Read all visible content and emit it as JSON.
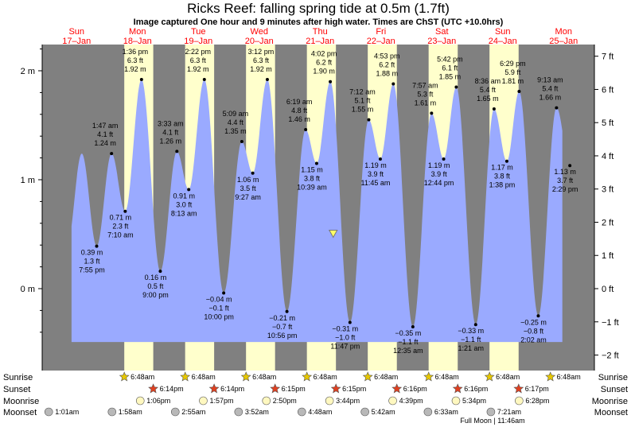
{
  "chart_data": {
    "type": "area",
    "title": "Ricks Reef: falling  spring tide at 0.5m (1.7ft)",
    "subtitle": "Image captured One hour and 9 minutes after high water. Times are ChST (UTC +10.0hrs)",
    "days": [
      {
        "weekday": "Sun",
        "date": "17–Jan"
      },
      {
        "weekday": "Mon",
        "date": "18–Jan"
      },
      {
        "weekday": "Tue",
        "date": "19–Jan"
      },
      {
        "weekday": "Wed",
        "date": "20–Jan"
      },
      {
        "weekday": "Thu",
        "date": "21–Jan"
      },
      {
        "weekday": "Fri",
        "date": "22–Jan"
      },
      {
        "weekday": "Sat",
        "date": "23–Jan"
      },
      {
        "weekday": "Sun",
        "date": "24–Jan"
      },
      {
        "weekday": "Mon",
        "date": "25–Jan"
      }
    ],
    "y_left_ticks": [
      {
        "v": 0,
        "label": "0 m"
      },
      {
        "v": 1,
        "label": "1 m"
      },
      {
        "v": 2,
        "label": "2 m"
      }
    ],
    "y_right_ticks": [
      {
        "ft": -2,
        "label": "−2 ft"
      },
      {
        "ft": -1,
        "label": "−1 ft"
      },
      {
        "ft": 0,
        "label": "0 ft"
      },
      {
        "ft": 1,
        "label": "1 ft"
      },
      {
        "ft": 2,
        "label": "2 ft"
      },
      {
        "ft": 3,
        "label": "3 ft"
      },
      {
        "ft": 4,
        "label": "4 ft"
      },
      {
        "ft": 5,
        "label": "5 ft"
      },
      {
        "ft": 6,
        "label": "6 ft"
      },
      {
        "ft": 7,
        "label": "7 ft"
      }
    ],
    "ylim_m": [
      -0.6,
      2.25
    ],
    "xlim_hours": [
      0,
      216
    ],
    "daylight": [
      {
        "sunrise_h": 30.8,
        "sunset_h": 42.23
      },
      {
        "sunrise_h": 54.8,
        "sunset_h": 66.23
      },
      {
        "sunrise_h": 78.8,
        "sunset_h": 90.25
      },
      {
        "sunrise_h": 102.8,
        "sunset_h": 114.25
      },
      {
        "sunrise_h": 126.8,
        "sunset_h": 138.27
      },
      {
        "sunrise_h": 150.8,
        "sunset_h": 162.27
      },
      {
        "sunrise_h": 174.8,
        "sunset_h": 186.28
      }
    ],
    "tide_extremes": [
      {
        "t": 19.92,
        "m": 0.39,
        "lines": [
          "0.39 m",
          "1.3 ft",
          "7:55 pm"
        ],
        "pos": "below"
      },
      {
        "t": 25.78,
        "m": 1.24,
        "lines": [
          "1:47 am",
          "4.1 ft",
          "1.24 m"
        ],
        "pos": "above"
      },
      {
        "t": 31.17,
        "m": 0.71,
        "lines": [
          "0.71 m",
          "2.3 ft",
          "7:10 am"
        ],
        "pos": "below"
      },
      {
        "t": 37.6,
        "m": 1.92,
        "lines": [
          "1:36 pm",
          "6.3 ft",
          "1.92 m"
        ],
        "pos": "above"
      },
      {
        "t": 45.0,
        "m": 0.16,
        "lines": [
          "0.16 m",
          "0.5 ft",
          "9:00 pm"
        ],
        "pos": "below"
      },
      {
        "t": 51.55,
        "m": 1.26,
        "lines": [
          "3:33 am",
          "4.1 ft",
          "1.26 m"
        ],
        "pos": "above"
      },
      {
        "t": 56.22,
        "m": 0.91,
        "lines": [
          "0.91 m",
          "3.0 ft",
          "8:13 am"
        ],
        "pos": "below"
      },
      {
        "t": 62.37,
        "m": 1.92,
        "lines": [
          "2:22 pm",
          "6.3 ft",
          "1.92 m"
        ],
        "pos": "above"
      },
      {
        "t": 70.0,
        "m": -0.04,
        "lines": [
          "−0.04 m",
          "−0.1 ft",
          "10:00 pm"
        ],
        "pos": "below"
      },
      {
        "t": 77.15,
        "m": 1.35,
        "lines": [
          "5:09 am",
          "4.4 ft",
          "1.35 m"
        ],
        "pos": "above"
      },
      {
        "t": 81.45,
        "m": 1.06,
        "lines": [
          "1.06 m",
          "3.5 ft",
          "9:27 am"
        ],
        "pos": "below"
      },
      {
        "t": 87.2,
        "m": 1.92,
        "lines": [
          "3:12 pm",
          "6.3 ft",
          "1.92 m"
        ],
        "pos": "above"
      },
      {
        "t": 94.93,
        "m": -0.21,
        "lines": [
          "−0.21 m",
          "−0.7 ft",
          "10:56 pm"
        ],
        "pos": "below"
      },
      {
        "t": 102.32,
        "m": 1.46,
        "lines": [
          "6:19 am",
          "4.8 ft",
          "1.46 m"
        ],
        "pos": "above"
      },
      {
        "t": 106.65,
        "m": 1.15,
        "lines": [
          "1.15 m",
          "3.8 ft",
          "10:39 am"
        ],
        "pos": "below"
      },
      {
        "t": 112.03,
        "m": 1.9,
        "lines": [
          "4:02 pm",
          "6.2 ft",
          "1.90 m"
        ],
        "pos": "above"
      },
      {
        "t": 119.78,
        "m": -0.31,
        "lines": [
          "−0.31 m",
          "−1.0 ft",
          "11:47 pm"
        ],
        "pos": "below"
      },
      {
        "t": 127.2,
        "m": 1.55,
        "lines": [
          "7:12 am",
          "5.1 ft",
          "1.55 m"
        ],
        "pos": "above"
      },
      {
        "t": 131.75,
        "m": 1.19,
        "lines": [
          "1.19 m",
          "3.9 ft",
          "11:45 am"
        ],
        "pos": "below"
      },
      {
        "t": 136.88,
        "m": 1.88,
        "lines": [
          "4:53 pm",
          "6.2 ft",
          "1.88 m"
        ],
        "pos": "above"
      },
      {
        "t": 144.58,
        "m": -0.35,
        "lines": [
          "−0.35 m",
          "−1.1 ft",
          "12:35 am"
        ],
        "pos": "below"
      },
      {
        "t": 151.95,
        "m": 1.61,
        "lines": [
          "7:57 am",
          "5.3 ft",
          "1.61 m"
        ],
        "pos": "above"
      },
      {
        "t": 156.73,
        "m": 1.19,
        "lines": [
          "1.19 m",
          "3.9 ft",
          "12:44 pm"
        ],
        "pos": "below"
      },
      {
        "t": 161.7,
        "m": 1.85,
        "lines": [
          "5:42 pm",
          "6.1 ft",
          "1.85 m"
        ],
        "pos": "above"
      },
      {
        "t": 169.35,
        "m": -0.33,
        "lines": [
          "−0.33 m",
          "−1.1 ft",
          "1:21 am"
        ],
        "pos": "below"
      },
      {
        "t": 176.6,
        "m": 1.65,
        "lines": [
          "8:36 am",
          "5.4 ft",
          "1.65 m"
        ],
        "pos": "above"
      },
      {
        "t": 181.63,
        "m": 1.17,
        "lines": [
          "1.17 m",
          "3.8 ft",
          "1:38 pm"
        ],
        "pos": "below"
      },
      {
        "t": 186.48,
        "m": 1.81,
        "lines": [
          "6:29 pm",
          "5.9 ft",
          "1.81 m"
        ],
        "pos": "above"
      },
      {
        "t": 194.03,
        "m": -0.25,
        "lines": [
          "−0.25 m",
          "−0.8 ft",
          "2:02 am"
        ],
        "pos": "below"
      },
      {
        "t": 201.22,
        "m": 1.66,
        "lines": [
          "9:13 am",
          "5.4 ft",
          "1.66 m"
        ],
        "pos": "above"
      },
      {
        "t": 206.48,
        "m": 1.13,
        "lines": [
          "1.13 m",
          "3.7 ft",
          "2:29 pm"
        ],
        "pos": "below"
      }
    ],
    "current_marker": {
      "t": 113.18,
      "m": 0.5
    },
    "event_rows": [
      {
        "label": "Sunrise",
        "kind": "sunrise",
        "events": [
          {
            "t": 30.8,
            "time": "6:48am"
          },
          {
            "t": 54.8,
            "time": "6:48am"
          },
          {
            "t": 78.8,
            "time": "6:48am"
          },
          {
            "t": 102.8,
            "time": "6:48am"
          },
          {
            "t": 126.8,
            "time": "6:48am"
          },
          {
            "t": 150.8,
            "time": "6:48am"
          },
          {
            "t": 174.8,
            "time": "6:48am"
          },
          {
            "t": 198.8,
            "time": "6:48am"
          }
        ]
      },
      {
        "label": "Sunset",
        "kind": "sunset",
        "events": [
          {
            "t": 42.23,
            "time": "6:14pm"
          },
          {
            "t": 66.23,
            "time": "6:14pm"
          },
          {
            "t": 90.25,
            "time": "6:15pm"
          },
          {
            "t": 114.25,
            "time": "6:15pm"
          },
          {
            "t": 138.27,
            "time": "6:16pm"
          },
          {
            "t": 162.27,
            "time": "6:16pm"
          },
          {
            "t": 186.28,
            "time": "6:17pm"
          }
        ]
      },
      {
        "label": "Moonrise",
        "kind": "moonrise",
        "events": [
          {
            "t": 37.1,
            "time": "1:06pm"
          },
          {
            "t": 61.95,
            "time": "1:57pm"
          },
          {
            "t": 86.83,
            "time": "2:50pm"
          },
          {
            "t": 111.73,
            "time": "3:44pm"
          },
          {
            "t": 136.65,
            "time": "4:39pm"
          },
          {
            "t": 161.57,
            "time": "5:34pm"
          },
          {
            "t": 186.47,
            "time": "6:28pm"
          }
        ]
      },
      {
        "label": "Moonset",
        "kind": "moonset",
        "events": [
          {
            "t": 1.02,
            "time": "1:01am"
          },
          {
            "t": 25.97,
            "time": "1:58am"
          },
          {
            "t": 50.92,
            "time": "2:55am"
          },
          {
            "t": 75.87,
            "time": "3:52am"
          },
          {
            "t": 100.8,
            "time": "4:48am"
          },
          {
            "t": 125.7,
            "time": "5:42am"
          },
          {
            "t": 150.55,
            "time": "6:33am"
          },
          {
            "t": 175.35,
            "time": "7:21am"
          }
        ]
      }
    ],
    "moon_phase_note": "Full Moon | 11:46am",
    "colors": {
      "night": "#808080",
      "day": "#ffffcc",
      "water": "#9aaaff",
      "outside": "#ffffff",
      "daylabel": "#ff0000",
      "sunrise": "#e6c700",
      "sunset": "#e04020",
      "moonrise": "#fff8c0",
      "moonset": "#b8b8b8"
    }
  }
}
